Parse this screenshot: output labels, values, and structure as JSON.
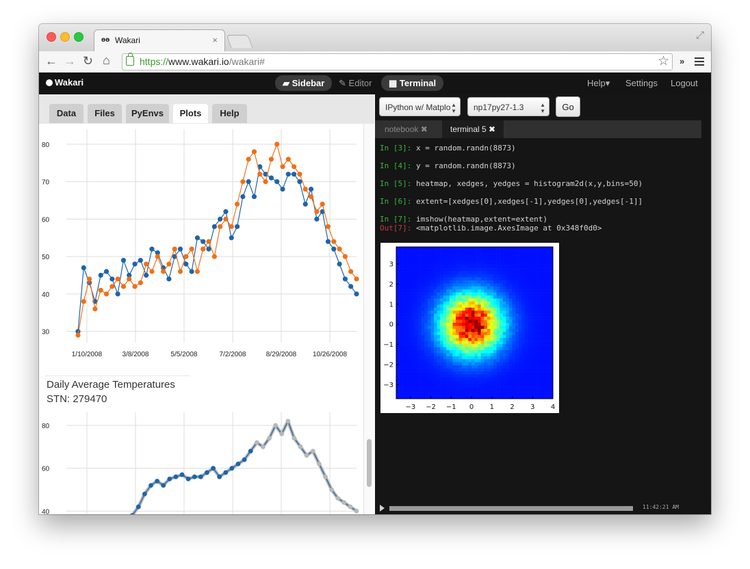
{
  "browser": {
    "tab_title": "Wakari",
    "tab_close": "×",
    "favicon_text": "ɵɵ",
    "url_scheme": "https://",
    "url_host": "www.wakari.io",
    "url_path": "/wakari#",
    "more_label": "»"
  },
  "app": {
    "brand": "Wakari",
    "center_nav": [
      {
        "label": "Sidebar",
        "icon": "folder-open-icon",
        "active": true
      },
      {
        "label": "Editor",
        "icon": "pencil-icon",
        "active": false
      },
      {
        "label": "Terminal",
        "icon": "grid-icon",
        "active": true
      }
    ],
    "right_nav": [
      "Help",
      "Settings",
      "Logout"
    ],
    "help_caret": "▾"
  },
  "sidebar": {
    "tabs": [
      {
        "label": "Data",
        "active": false
      },
      {
        "label": "Files",
        "active": false
      },
      {
        "label": "PyEnvs",
        "active": false
      },
      {
        "label": "Plots",
        "active": true
      },
      {
        "label": "Help",
        "active": false
      }
    ],
    "caption_title": "Daily Average Temperatures",
    "caption_station": "STN: 279470"
  },
  "terminal": {
    "env_select": "IPython w/ Matplo",
    "py_select": "np17py27-1.3",
    "go_label": "Go",
    "tabs": [
      {
        "label": "notebook",
        "active": false
      },
      {
        "label": "terminal 5",
        "active": true
      }
    ],
    "tab_close_glyph": "✖",
    "lines": [
      {
        "prompt": "In [3]:",
        "code": "x = random.randn(8873)",
        "kind": "in"
      },
      {
        "prompt": "In [4]:",
        "code": "y = random.randn(8873)",
        "kind": "in"
      },
      {
        "prompt": "In [5]:",
        "code": "heatmap, xedges, yedges = histogram2d(x,y,bins=50)",
        "kind": "in"
      },
      {
        "prompt": "In [6]:",
        "code": "extent=[xedges[0],xedges[-1],yedges[0],yedges[-1]]",
        "kind": "in"
      },
      {
        "prompt": "In [7]:",
        "code": "imshow(heatmap,extent=extent)",
        "kind": "in"
      },
      {
        "prompt": "Out[7]:",
        "code": "<matplotlib.image.AxesImage at 0x348f0d0>",
        "kind": "out"
      }
    ],
    "timestamp": "11:42:21 AM"
  },
  "chart_data": [
    {
      "type": "line",
      "title": "",
      "x_tick_labels": [
        "1/10/2008",
        "3/8/2008",
        "5/5/2008",
        "7/2/2008",
        "8/29/2008",
        "10/26/2008"
      ],
      "y_ticks": [
        30,
        40,
        50,
        60,
        70,
        80
      ],
      "ylim": [
        27,
        84
      ],
      "grid": true,
      "series": [
        {
          "color": "#1f64a8",
          "values": [
            30,
            47,
            43,
            38,
            45,
            46,
            44,
            40,
            49,
            45,
            48,
            49,
            45,
            52,
            51,
            47,
            44,
            50,
            52,
            48,
            46,
            55,
            54,
            52,
            58,
            60,
            62,
            55,
            58,
            66,
            70,
            66,
            74,
            72,
            71,
            70,
            68,
            72,
            72,
            70,
            64,
            68,
            60,
            62,
            54,
            52,
            48,
            44,
            42,
            40
          ]
        },
        {
          "color": "#f07018",
          "values": [
            29,
            38,
            44,
            36,
            41,
            40,
            42,
            44,
            42,
            44,
            42,
            43,
            48,
            46,
            50,
            46,
            48,
            52,
            46,
            50,
            52,
            46,
            52,
            54,
            50,
            58,
            60,
            58,
            64,
            70,
            76,
            78,
            72,
            70,
            76,
            80,
            74,
            76,
            74,
            72,
            68,
            66,
            62,
            64,
            58,
            54,
            52,
            50,
            46,
            44
          ]
        }
      ]
    },
    {
      "type": "line",
      "title": "Daily Average Temperatures",
      "subtitle": "STN: 279470",
      "y_ticks": [
        40,
        60,
        80
      ],
      "grid": true,
      "series": [
        {
          "color": "#1f64a8",
          "values": [
            34,
            36,
            38,
            42,
            48,
            52,
            54,
            52,
            55,
            56,
            57,
            55,
            56,
            56,
            58,
            60,
            56,
            58,
            60,
            62,
            64,
            68,
            72,
            70,
            74,
            80,
            76,
            82,
            74,
            70,
            66,
            68,
            62,
            56,
            50,
            46,
            44,
            42,
            40
          ]
        }
      ]
    },
    {
      "type": "heatmap",
      "title": "",
      "x_ticks": [
        -3,
        -2,
        -1,
        0,
        1,
        2,
        3,
        4
      ],
      "y_ticks": [
        -3,
        -2,
        -1,
        0,
        1,
        2,
        3
      ],
      "xlim": [
        -3.7,
        4.0
      ],
      "ylim": [
        -3.7,
        3.85
      ],
      "bins": 50,
      "distribution": "2D standard normal histogram, 8873 samples",
      "colormap": "jet"
    }
  ]
}
